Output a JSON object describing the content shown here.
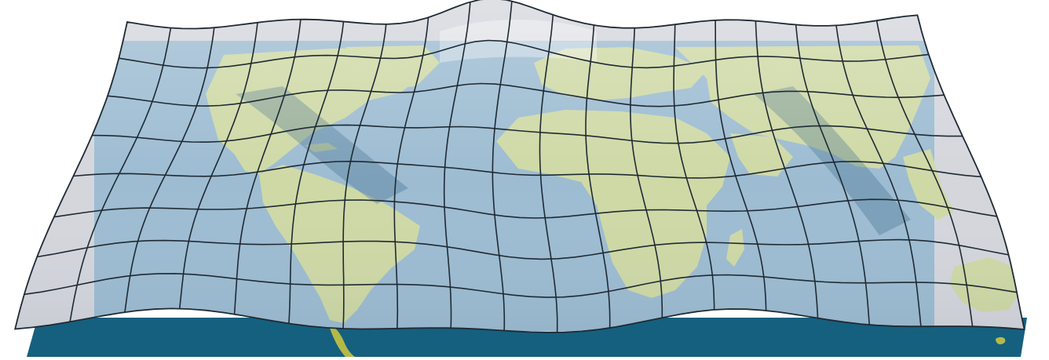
{
  "figure": {
    "kind": "3d-warped-world-map",
    "colors": {
      "background": "#ffffff",
      "ocean_base": "#15607f",
      "land_base": "#b5b948",
      "ocean_sheet": "#9dbcd2",
      "land_sheet": "#cfd9a6",
      "sheet_edge": "#d4d6dc",
      "grid_line": "#1f2a33"
    },
    "grid": {
      "rows": 8,
      "cols": 19
    }
  }
}
